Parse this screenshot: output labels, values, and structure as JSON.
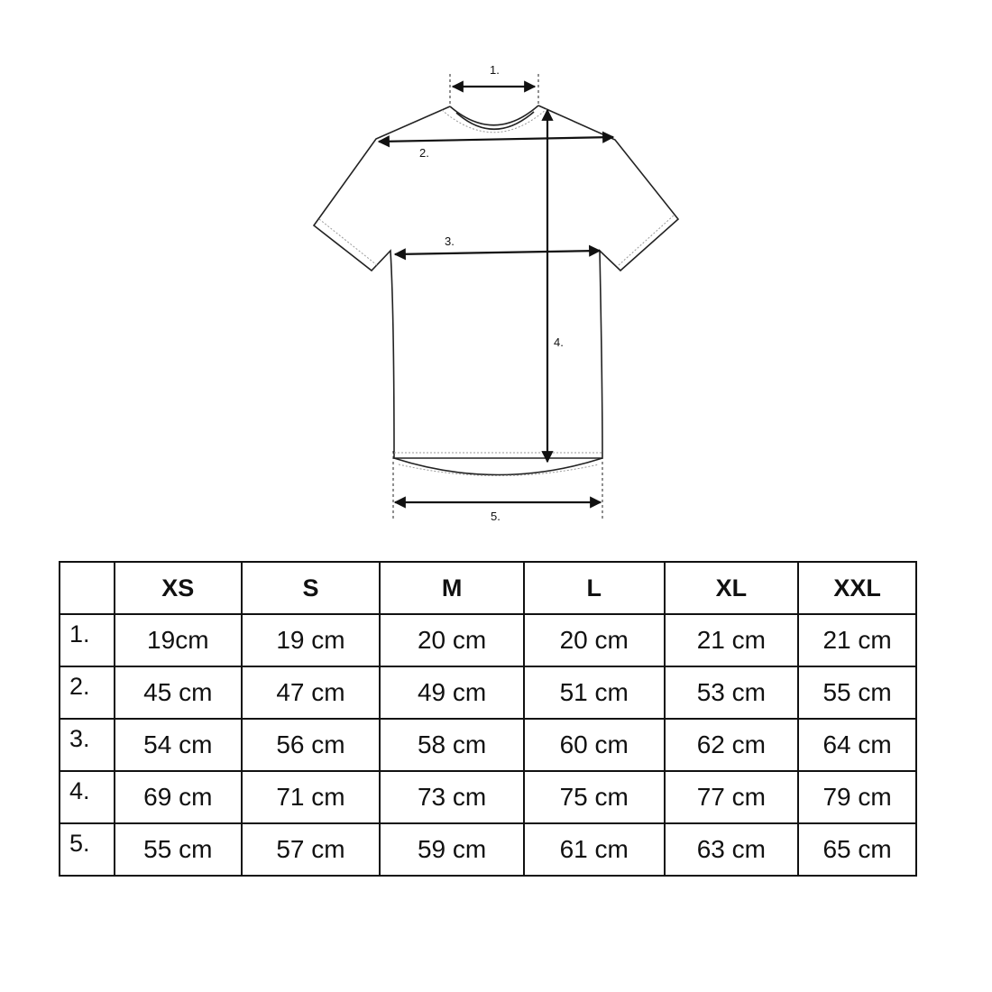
{
  "diagram": {
    "labels": [
      "1.",
      "2.",
      "3.",
      "4.",
      "5."
    ]
  },
  "table": {
    "headers": [
      "",
      "XS",
      "S",
      "M",
      "L",
      "XL",
      "XXL"
    ],
    "rows": [
      {
        "label": "1.",
        "values": [
          "19cm",
          "19 cm",
          "20 cm",
          "20 cm",
          "21 cm",
          "21 cm"
        ]
      },
      {
        "label": "2.",
        "values": [
          "45 cm",
          "47 cm",
          "49 cm",
          "51 cm",
          "53 cm",
          "55 cm"
        ]
      },
      {
        "label": "3.",
        "values": [
          "54 cm",
          "56 cm",
          "58 cm",
          "60 cm",
          "62 cm",
          "64 cm"
        ]
      },
      {
        "label": "4.",
        "values": [
          "69 cm",
          "71 cm",
          "73 cm",
          "75 cm",
          "77 cm",
          "79 cm"
        ]
      },
      {
        "label": "5.",
        "values": [
          "55 cm",
          "57 cm",
          "59 cm",
          "61 cm",
          "63 cm",
          "65 cm"
        ]
      }
    ]
  }
}
